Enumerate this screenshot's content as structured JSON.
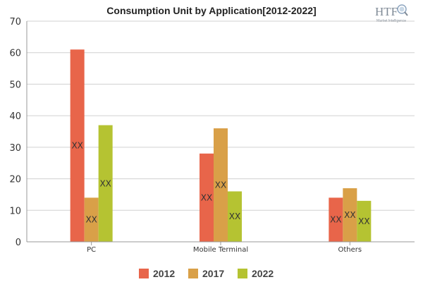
{
  "chart_data": {
    "type": "bar",
    "title": "Consumption Unit by  Application[2012-2022]",
    "xlabel": "",
    "ylabel": "",
    "categories": [
      "PC",
      "Mobile Terminal",
      "Others"
    ],
    "ylim": [
      0,
      70
    ],
    "yticks": [
      0,
      10,
      20,
      30,
      40,
      50,
      60,
      70
    ],
    "grid": true,
    "legend_position": "bottom",
    "data_label": "XX",
    "series": [
      {
        "name": "2012",
        "color": "#e8654a",
        "values": [
          61,
          28,
          14
        ]
      },
      {
        "name": "2017",
        "color": "#d9a048",
        "values": [
          14,
          36,
          17
        ]
      },
      {
        "name": "2022",
        "color": "#b5c332",
        "values": [
          37,
          16,
          13
        ]
      }
    ]
  },
  "logo": {
    "text": "HTF",
    "subtext": "Market Intelligence",
    "icon": "magnifier-globe-icon"
  }
}
